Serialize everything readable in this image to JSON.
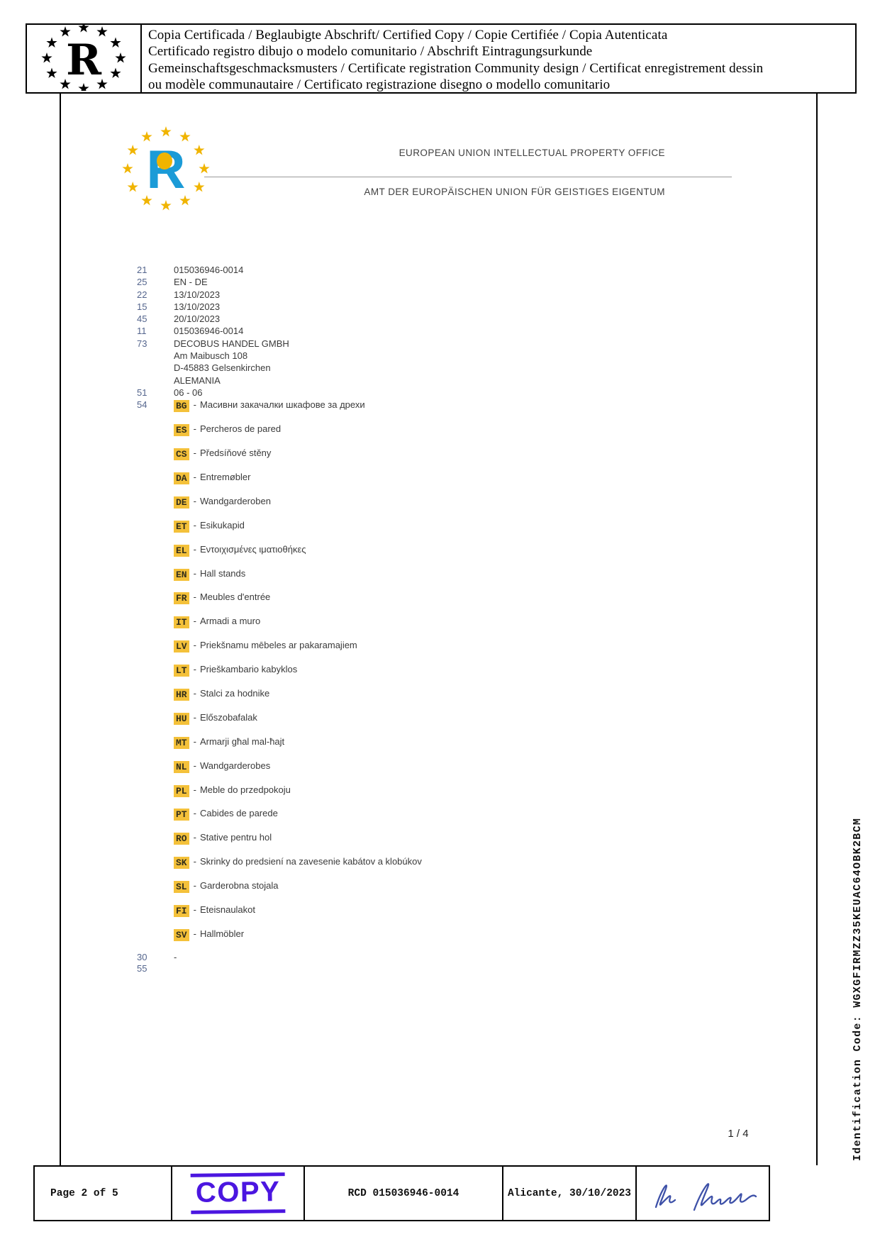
{
  "certification_banner": {
    "lines": [
      "Copia Certificada / Beglaubigte Abschrift/ Certified Copy / Copie Certifiée / Copia Autenticata",
      "Certificado registro dibujo o modelo comunitario / Abschrift Eintragungsurkunde",
      "Gemeinschaftsgeschmacksmusters / Certificate registration Community design / Certificat enregistrement dessin",
      "ou modèle communautaire / Certificato registrazione disegno o modello comunitario"
    ]
  },
  "office": {
    "name_en": "EUROPEAN UNION INTELLECTUAL PROPERTY OFFICE",
    "name_de": "AMT DER EUROPÄISCHEN UNION FÜR GEISTIGES EIGENTUM"
  },
  "icons": {
    "euipo_logo": "circle-of-stars-with-R",
    "banner_logo": "black-circle-of-stars-with-R"
  },
  "fields": [
    {
      "code": "21",
      "lines": [
        "015036946-0014"
      ]
    },
    {
      "code": "25",
      "lines": [
        "EN - DE"
      ]
    },
    {
      "code": "22",
      "lines": [
        "13/10/2023"
      ]
    },
    {
      "code": "15",
      "lines": [
        "13/10/2023"
      ]
    },
    {
      "code": "45",
      "lines": [
        "20/10/2023"
      ]
    },
    {
      "code": "11",
      "lines": [
        "015036946-0014"
      ]
    },
    {
      "code": "73",
      "lines": [
        "DECOBUS HANDEL GMBH",
        "Am Maibusch 108",
        "D-45883 Gelsenkirchen",
        "ALEMANIA"
      ]
    },
    {
      "code": "51",
      "lines": [
        "06 - 06"
      ]
    }
  ],
  "indications": {
    "code": "54",
    "separator": "-",
    "items": [
      {
        "lang": "BG",
        "text": "Масивни закачалки шкафове за дрехи"
      },
      {
        "lang": "ES",
        "text": "Percheros de pared"
      },
      {
        "lang": "CS",
        "text": "Předsíňové stěny"
      },
      {
        "lang": "DA",
        "text": "Entremøbler"
      },
      {
        "lang": "DE",
        "text": "Wandgarderoben"
      },
      {
        "lang": "ET",
        "text": "Esikukapid"
      },
      {
        "lang": "EL",
        "text": "Εντοιχισμένες ιματιοθήκες"
      },
      {
        "lang": "EN",
        "text": "Hall stands"
      },
      {
        "lang": "FR",
        "text": "Meubles d'entrée"
      },
      {
        "lang": "IT",
        "text": "Armadi a muro"
      },
      {
        "lang": "LV",
        "text": "Priekšnamu mēbeles ar pakaramajiem"
      },
      {
        "lang": "LT",
        "text": "Prieškambario kabyklos"
      },
      {
        "lang": "HR",
        "text": "Stalci za hodnike"
      },
      {
        "lang": "HU",
        "text": "Előszobafalak"
      },
      {
        "lang": "MT",
        "text": "Armarji għal mal-ħajt"
      },
      {
        "lang": "NL",
        "text": "Wandgarderobes"
      },
      {
        "lang": "PL",
        "text": "Meble do przedpokoju"
      },
      {
        "lang": "PT",
        "text": "Cabides de parede"
      },
      {
        "lang": "RO",
        "text": "Stative pentru hol"
      },
      {
        "lang": "SK",
        "text": "Skrinky do predsiení na zavesenie kabátov a klobúkov"
      },
      {
        "lang": "SL",
        "text": "Garderobna stojala"
      },
      {
        "lang": "FI",
        "text": "Eteisnaulakot"
      },
      {
        "lang": "SV",
        "text": "Hallmöbler"
      }
    ]
  },
  "trailing_fields": [
    {
      "code": "30",
      "lines": [
        "-"
      ]
    },
    {
      "code": "55",
      "lines": [
        ""
      ]
    }
  ],
  "page_indicator": "1 / 4",
  "identification_code": "Identification Code: WGXGFIRMZZ35KEUAC64OBK2BCM",
  "footer": {
    "page_label": "Page 2 of 5",
    "stamp_label": "COPY",
    "rcd_number": "RCD 015036946-0014",
    "place_date": "Alicante, 30/10/2023"
  },
  "colors": {
    "stamp_blue": "#4B16E0",
    "chip_amber": "#F4C13A",
    "field_code_blue": "#54658D",
    "logo_gold": "#F0B400",
    "logo_blue": "#1B9BD7",
    "signature_ink": "#3E51A8"
  }
}
